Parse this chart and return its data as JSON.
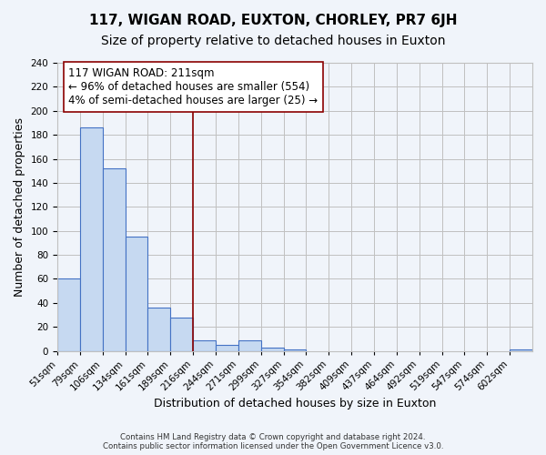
{
  "title": "117, WIGAN ROAD, EUXTON, CHORLEY, PR7 6JH",
  "subtitle": "Size of property relative to detached houses in Euxton",
  "xlabel": "Distribution of detached houses by size in Euxton",
  "ylabel": "Number of detached properties",
  "footer_lines": [
    "Contains HM Land Registry data © Crown copyright and database right 2024.",
    "Contains public sector information licensed under the Open Government Licence v3.0."
  ],
  "bin_labels": [
    "51sqm",
    "79sqm",
    "106sqm",
    "134sqm",
    "161sqm",
    "189sqm",
    "216sqm",
    "244sqm",
    "271sqm",
    "299sqm",
    "327sqm",
    "354sqm",
    "382sqm",
    "409sqm",
    "437sqm",
    "464sqm",
    "492sqm",
    "519sqm",
    "547sqm",
    "574sqm",
    "602sqm"
  ],
  "bar_values": [
    60,
    186,
    152,
    95,
    36,
    28,
    9,
    5,
    9,
    3,
    1,
    0,
    0,
    0,
    0,
    0,
    0,
    0,
    0,
    0,
    1
  ],
  "bar_color": "#c6d9f1",
  "bar_edge_color": "#4472c4",
  "vline_x_index": 6,
  "vline_color": "#8b0000",
  "annotation_box_text": "117 WIGAN ROAD: 211sqm\n← 96% of detached houses are smaller (554)\n4% of semi-detached houses are larger (25) →",
  "annotation_box_edge_color": "#8b0000",
  "annotation_box_facecolor": "white",
  "ylim": [
    0,
    240
  ],
  "yticks": [
    0,
    20,
    40,
    60,
    80,
    100,
    120,
    140,
    160,
    180,
    200,
    220,
    240
  ],
  "grid_color": "#c0c0c0",
  "background_color": "#f0f4fa",
  "title_fontsize": 11,
  "subtitle_fontsize": 10,
  "annotation_fontsize": 8.5,
  "tick_fontsize": 7.5,
  "axis_label_fontsize": 9
}
